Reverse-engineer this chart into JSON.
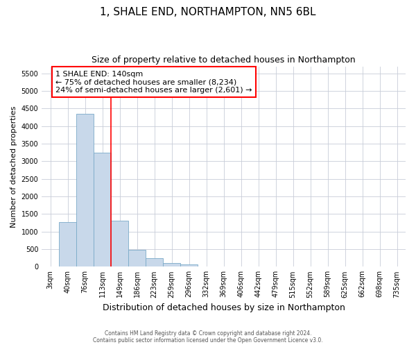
{
  "title": "1, SHALE END, NORTHAMPTON, NN5 6BL",
  "subtitle": "Size of property relative to detached houses in Northampton",
  "xlabel": "Distribution of detached houses by size in Northampton",
  "ylabel": "Number of detached properties",
  "footer_line1": "Contains HM Land Registry data © Crown copyright and database right 2024.",
  "footer_line2": "Contains public sector information licensed under the Open Government Licence v3.0.",
  "bar_color": "#c8d8ea",
  "bar_edge_color": "#7aaac8",
  "annotation_line1": "1 SHALE END: 140sqm",
  "annotation_line2": "← 75% of detached houses are smaller (8,234)",
  "annotation_line3": "24% of semi-detached houses are larger (2,601) →",
  "categories": [
    "3sqm",
    "40sqm",
    "76sqm",
    "113sqm",
    "149sqm",
    "186sqm",
    "223sqm",
    "259sqm",
    "296sqm",
    "332sqm",
    "369sqm",
    "406sqm",
    "442sqm",
    "479sqm",
    "515sqm",
    "552sqm",
    "589sqm",
    "625sqm",
    "662sqm",
    "698sqm",
    "735sqm"
  ],
  "values": [
    0,
    1270,
    4350,
    3250,
    1300,
    480,
    240,
    100,
    70,
    0,
    0,
    0,
    0,
    0,
    0,
    0,
    0,
    0,
    0,
    0,
    0
  ],
  "red_line_bin_index": 4,
  "ylim": [
    0,
    5700
  ],
  "yticks": [
    0,
    500,
    1000,
    1500,
    2000,
    2500,
    3000,
    3500,
    4000,
    4500,
    5000,
    5500
  ],
  "background_color": "#ffffff",
  "grid_color": "#c8ccd8",
  "title_fontsize": 11,
  "subtitle_fontsize": 9,
  "xlabel_fontsize": 9,
  "ylabel_fontsize": 8,
  "tick_fontsize": 7,
  "annotation_fontsize": 8
}
